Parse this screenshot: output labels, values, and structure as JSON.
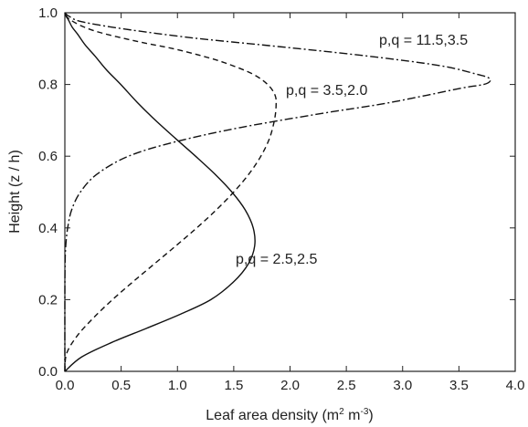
{
  "chart_data": {
    "type": "line",
    "title": "",
    "xlabel": "Leaf area density (m",
    "xlabel_sup1": "2",
    "xlabel_mid": " m",
    "xlabel_sup2": "-3",
    "xlabel_end": ")",
    "ylabel": "Height (z / h)",
    "xlim": [
      0,
      4
    ],
    "ylim": [
      0,
      1
    ],
    "xticks": [
      "0.0",
      "0.5",
      "1.0",
      "1.5",
      "2.0",
      "2.5",
      "3.0",
      "3.5",
      "4.0"
    ],
    "yticks": [
      "0.0",
      "0.2",
      "0.4",
      "0.6",
      "0.8",
      "1.0"
    ],
    "grid": false,
    "legend": "none",
    "series": [
      {
        "name": "p,q = 2.5,2.5",
        "line_style": "solid",
        "x": [
          0,
          0.149,
          0.412,
          0.725,
          1.031,
          1.297,
          1.5,
          1.63,
          1.686,
          1.673,
          1.602,
          1.484,
          1.333,
          1.161,
          0.981,
          0.805,
          0.643,
          0.497,
          0.372,
          0.266,
          0.181,
          0.114,
          0.065,
          0.032,
          0.011,
          0.002,
          0
        ],
        "y": [
          0,
          0.04,
          0.08,
          0.12,
          0.16,
          0.2,
          0.25,
          0.3,
          0.35,
          0.4,
          0.45,
          0.5,
          0.55,
          0.6,
          0.65,
          0.7,
          0.75,
          0.8,
          0.84,
          0.88,
          0.91,
          0.94,
          0.96,
          0.98,
          0.99,
          0.998,
          1.0
        ]
      },
      {
        "name": "p,q = 3.5,2.0",
        "line_style": "dashed",
        "x": [
          0,
          0.016,
          0.112,
          0.257,
          0.423,
          0.606,
          0.796,
          0.986,
          1.171,
          1.344,
          1.5,
          1.634,
          1.741,
          1.818,
          1.861,
          1.876,
          1.867,
          1.801,
          1.663,
          1.425,
          1.214,
          0.961,
          0.645,
          0.258,
          0.049,
          0
        ],
        "y": [
          0,
          0.05,
          0.1,
          0.15,
          0.2,
          0.25,
          0.3,
          0.35,
          0.4,
          0.45,
          0.5,
          0.55,
          0.6,
          0.65,
          0.7,
          0.74,
          0.77,
          0.8,
          0.83,
          0.86,
          0.88,
          0.9,
          0.92,
          0.95,
          0.98,
          1.0
        ]
      },
      {
        "name": "p,q = 11.5,3.5",
        "line_style": "dashdot",
        "x": [
          0,
          0,
          0.002,
          0.008,
          0.025,
          0.06,
          0.138,
          0.286,
          0.565,
          0.98,
          1.56,
          2.296,
          2.805,
          3.215,
          3.524,
          3.72,
          3.778,
          3.755,
          3.643,
          3.379,
          2.934,
          2.381,
          1.764,
          1.133,
          0.523,
          0.151,
          0.038,
          0
        ],
        "y": [
          0,
          0.2,
          0.3,
          0.35,
          0.4,
          0.45,
          0.5,
          0.55,
          0.6,
          0.64,
          0.68,
          0.72,
          0.745,
          0.77,
          0.79,
          0.8,
          0.81,
          0.82,
          0.83,
          0.85,
          0.87,
          0.89,
          0.91,
          0.93,
          0.955,
          0.975,
          0.99,
          1.0
        ]
      }
    ],
    "annotations": [
      {
        "text": "p,q = 11.5,3.5",
        "series": 2
      },
      {
        "text": "p,q = 3.5,2.0",
        "series": 1
      },
      {
        "text": "p,q = 2.5,2.5",
        "series": 0
      }
    ]
  }
}
